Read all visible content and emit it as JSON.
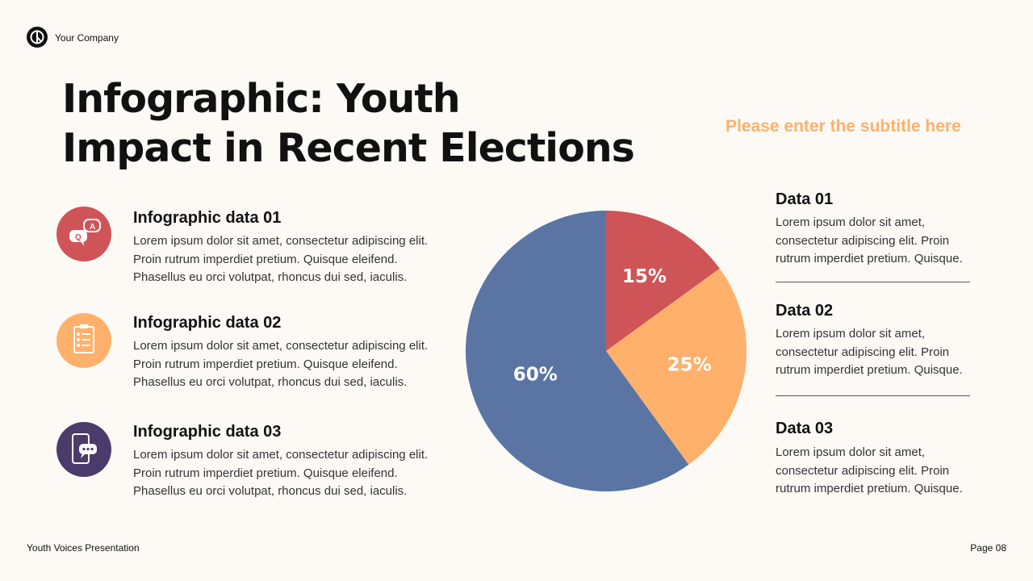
{
  "header": {
    "company": "Your Company",
    "title_line1": "Infographic: Youth",
    "title_line2": "Impact in Recent Elections",
    "subtitle": "Please enter the subtitle here"
  },
  "items": [
    {
      "title": "Infographic data 01",
      "text": "Lorem ipsum dolor sit amet, consectetur adipiscing elit. Proin rutrum imperdiet pretium. Quisque eleifend. Phasellus eu orci volutpat, rhoncus dui sed, iaculis.",
      "icon": "qa-chat-icon",
      "color": "#cf5457"
    },
    {
      "title": "Infographic data 02",
      "text": "Lorem ipsum dolor sit amet, consectetur adipiscing elit. Proin rutrum imperdiet pretium. Quisque eleifend. Phasellus eu orci volutpat, rhoncus dui sed, iaculis.",
      "icon": "clipboard-checklist-icon",
      "color": "#ffb06b"
    },
    {
      "title": "Infographic data 03",
      "text": "Lorem ipsum dolor sit amet, consectetur adipiscing elit. Proin rutrum imperdiet pretium. Quisque eleifend. Phasellus eu orci volutpat, rhoncus dui sed, iaculis.",
      "icon": "phone-message-icon",
      "color": "#4a3b6b"
    }
  ],
  "data_list": [
    {
      "title": "Data 01",
      "text": "Lorem ipsum dolor sit amet, consectetur adipiscing elit. Proin rutrum imperdiet pretium. Quisque."
    },
    {
      "title": "Data 02",
      "text": "Lorem ipsum dolor sit amet, consectetur adipiscing elit. Proin rutrum imperdiet pretium. Quisque."
    },
    {
      "title": "Data 03",
      "text": "Lorem ipsum dolor sit amet, consectetur adipiscing elit. Proin rutrum imperdiet pretium. Quisque."
    }
  ],
  "chart_data": {
    "type": "pie",
    "values": [
      15,
      25,
      60
    ],
    "labels": [
      "15%",
      "25%",
      "60%"
    ],
    "colors": [
      "#cf5457",
      "#ffb06b",
      "#5a75a4"
    ]
  },
  "footer": {
    "left": "Youth Voices Presentation",
    "right": "Page 08"
  }
}
